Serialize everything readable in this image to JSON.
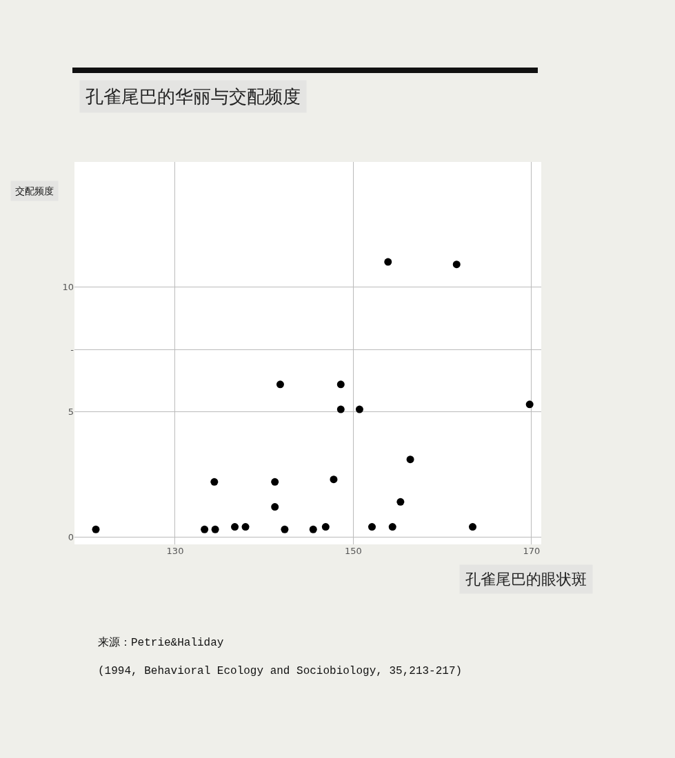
{
  "chart_data": {
    "type": "scatter",
    "title": "孔雀尾巴的华丽与交配频度",
    "xlabel": "孔雀尾巴的眼状斑",
    "ylabel": "交配频度",
    "annotations": [
      "来源：Petrie&Haliday",
      "(1994, Behavioral Ecology and Sociobiology, 35,213-217)"
    ],
    "x": [
      121.1,
      133.3,
      134.5,
      134.4,
      136.7,
      137.9,
      141.2,
      141.2,
      141.8,
      142.3,
      145.5,
      146.9,
      147.8,
      148.6,
      148.6,
      150.7,
      152.1,
      154.4,
      155.3,
      156.4,
      163.4,
      169.8,
      153.9,
      161.6
    ],
    "series": [
      {
        "color": "#000000",
        "values": [
          0.3,
          0.3,
          0.3,
          2.2,
          0.4,
          0.4,
          2.2,
          1.2,
          6.1,
          0.3,
          0.3,
          0.4,
          2.3,
          6.1,
          5.1,
          5.1,
          0.4,
          0.4,
          1.4,
          3.1,
          0.4,
          5.3,
          11,
          10.9
        ]
      }
    ],
    "xlim": [
      118.7,
      171.1
    ],
    "xticks": [
      130,
      150,
      170
    ],
    "ylim": [
      -0.3,
      15
    ],
    "yticks": [
      0,
      5,
      {
        "value": 7.5,
        "label": "-"
      },
      10
    ],
    "grid": true,
    "marker": "circle",
    "legend": false
  }
}
